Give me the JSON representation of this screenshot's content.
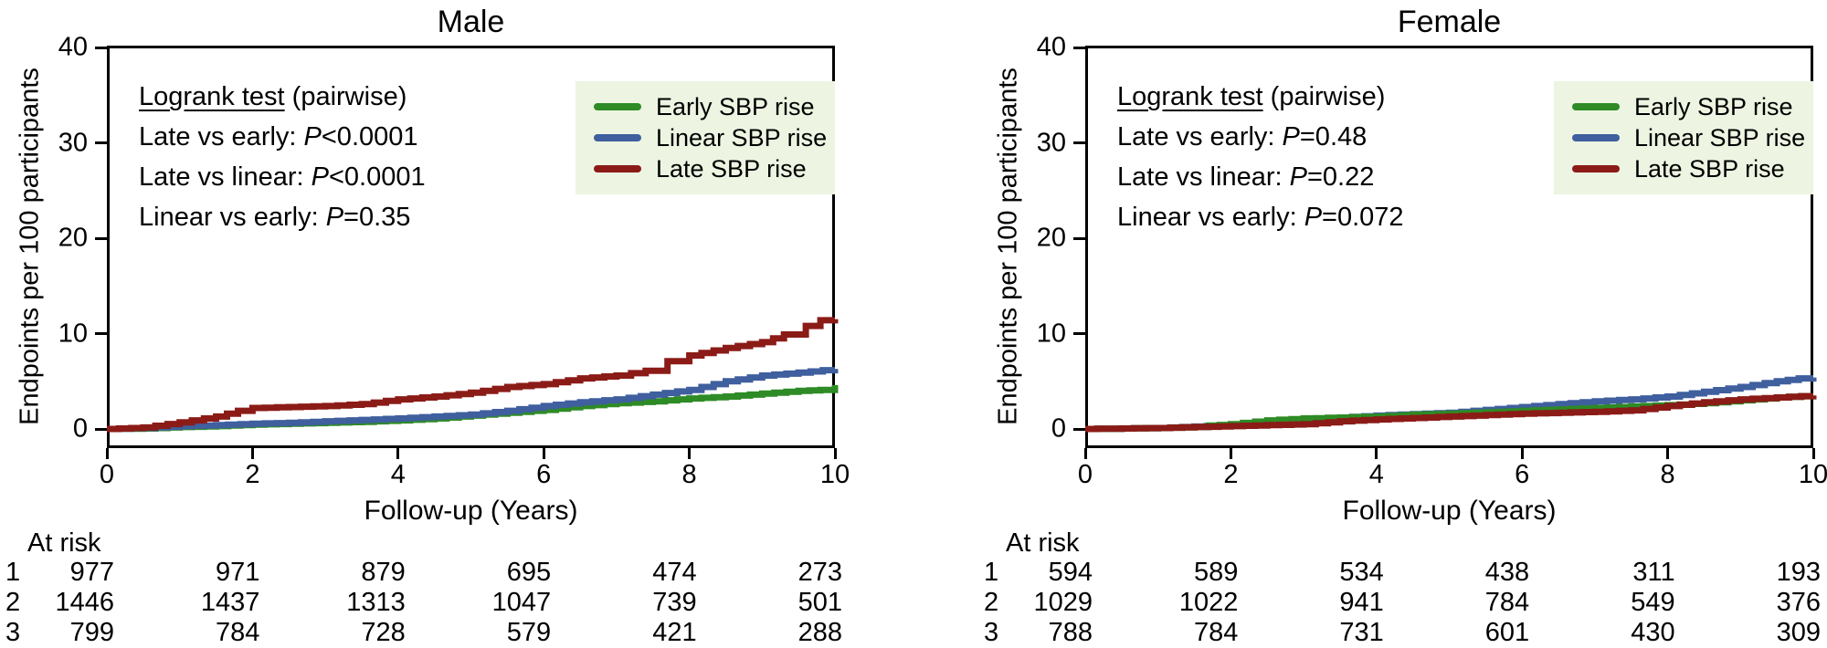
{
  "colors": {
    "early": "#2e8b25",
    "linear": "#3f5f9e",
    "late": "#8b1b17",
    "legend_bg": "#edf5e2",
    "axis": "#000000"
  },
  "legend": {
    "items": [
      {
        "key": "early",
        "label": "Early SBP rise"
      },
      {
        "key": "linear",
        "label": "Linear SBP rise"
      },
      {
        "key": "late",
        "label": "Late SBP rise"
      }
    ]
  },
  "panels": [
    {
      "title": "Male",
      "xlabel": "Follow-up (Years)",
      "ylabel": "Endpoints per 100 participants",
      "logrank": {
        "header_underlined": "Logrank test",
        "header_rest": " (pairwise)",
        "lines": [
          {
            "pre": "Late vs early: ",
            "p": "P",
            "val": "<0.0001"
          },
          {
            "pre": "Late vs linear: ",
            "p": "P",
            "val": "<0.0001"
          },
          {
            "pre": "Linear vs early: ",
            "p": "P",
            "val": "=0.35"
          }
        ]
      },
      "at_risk": {
        "header": "At risk",
        "rows": [
          {
            "label": "1",
            "values": [
              "977",
              "971",
              "879",
              "695",
              "474",
              "273"
            ]
          },
          {
            "label": "2",
            "values": [
              "1446",
              "1437",
              "1313",
              "1047",
              "739",
              "501"
            ]
          },
          {
            "label": "3",
            "values": [
              "799",
              "784",
              "728",
              "579",
              "421",
              "288"
            ]
          }
        ]
      }
    },
    {
      "title": "Female",
      "xlabel": "Follow-up (Years)",
      "ylabel": "Endpoints per 100 participants",
      "logrank": {
        "header_underlined": "Logrank test",
        "header_rest": " (pairwise)",
        "lines": [
          {
            "pre": "Late vs early: ",
            "p": "P",
            "val": "=0.48"
          },
          {
            "pre": "Late vs linear: ",
            "p": "P",
            "val": "=0.22"
          },
          {
            "pre": "Linear vs early: ",
            "p": "P",
            "val": "=0.072"
          }
        ]
      },
      "at_risk": {
        "header": "At risk",
        "rows": [
          {
            "label": "1",
            "values": [
              "594",
              "589",
              "534",
              "438",
              "311",
              "193"
            ]
          },
          {
            "label": "2",
            "values": [
              "1029",
              "1022",
              "941",
              "784",
              "549",
              "376"
            ]
          },
          {
            "label": "3",
            "values": [
              "788",
              "784",
              "731",
              "601",
              "430",
              "309"
            ]
          }
        ]
      }
    }
  ],
  "chart_data": [
    {
      "type": "line",
      "subtype": "kaplan-meier-step",
      "title": "Male",
      "xlabel": "Follow-up (Years)",
      "ylabel": "Endpoints per 100 participants",
      "xlim": [
        0,
        10
      ],
      "ylim": [
        0,
        40
      ],
      "xticks": [
        0,
        2,
        4,
        6,
        8,
        10
      ],
      "yticks": [
        0,
        10,
        20,
        30,
        40
      ],
      "grid": false,
      "legend_position": "upper right",
      "series": [
        {
          "key": "early",
          "name": "Early SBP rise",
          "points": [
            [
              0,
              0
            ],
            [
              0.5,
              0.05
            ],
            [
              1,
              0.2
            ],
            [
              1.5,
              0.3
            ],
            [
              2,
              0.45
            ],
            [
              2.5,
              0.55
            ],
            [
              3,
              0.65
            ],
            [
              3.5,
              0.75
            ],
            [
              4,
              0.9
            ],
            [
              4.5,
              1.1
            ],
            [
              5,
              1.4
            ],
            [
              5.5,
              1.7
            ],
            [
              6,
              2.0
            ],
            [
              6.5,
              2.4
            ],
            [
              7,
              2.7
            ],
            [
              7.5,
              2.9
            ],
            [
              8,
              3.2
            ],
            [
              8.5,
              3.4
            ],
            [
              9,
              3.7
            ],
            [
              9.5,
              4.0
            ],
            [
              9.8,
              4.1
            ],
            [
              10,
              4.6
            ]
          ]
        },
        {
          "key": "linear",
          "name": "Linear SBP rise",
          "points": [
            [
              0,
              0
            ],
            [
              0.5,
              0.1
            ],
            [
              1,
              0.3
            ],
            [
              1.5,
              0.4
            ],
            [
              2,
              0.55
            ],
            [
              2.5,
              0.65
            ],
            [
              3,
              0.8
            ],
            [
              3.5,
              0.95
            ],
            [
              4,
              1.1
            ],
            [
              4.5,
              1.3
            ],
            [
              5,
              1.5
            ],
            [
              5.5,
              1.9
            ],
            [
              6,
              2.4
            ],
            [
              6.5,
              2.8
            ],
            [
              7,
              3.1
            ],
            [
              7.5,
              3.6
            ],
            [
              8,
              4.1
            ],
            [
              8.5,
              5.0
            ],
            [
              9,
              5.6
            ],
            [
              9.5,
              5.9
            ],
            [
              10,
              6.3
            ]
          ]
        },
        {
          "key": "late",
          "name": "Late SBP rise",
          "points": [
            [
              0,
              0
            ],
            [
              0.5,
              0.15
            ],
            [
              1,
              0.7
            ],
            [
              1.5,
              1.3
            ],
            [
              1.8,
              1.9
            ],
            [
              2,
              2.2
            ],
            [
              2.5,
              2.3
            ],
            [
              3,
              2.4
            ],
            [
              3.5,
              2.6
            ],
            [
              4,
              3.1
            ],
            [
              4.5,
              3.4
            ],
            [
              5,
              3.8
            ],
            [
              5.5,
              4.4
            ],
            [
              6,
              4.7
            ],
            [
              6.5,
              5.3
            ],
            [
              7,
              5.6
            ],
            [
              7.4,
              6.1
            ],
            [
              7.7,
              7.1
            ],
            [
              8,
              7.7
            ],
            [
              8.5,
              8.5
            ],
            [
              9,
              9.1
            ],
            [
              9.3,
              9.9
            ],
            [
              9.6,
              10.8
            ],
            [
              9.8,
              11.4
            ],
            [
              10,
              11.5
            ]
          ]
        }
      ]
    },
    {
      "type": "line",
      "subtype": "kaplan-meier-step",
      "title": "Female",
      "xlabel": "Follow-up (Years)",
      "ylabel": "Endpoints per 100 participants",
      "xlim": [
        0,
        10
      ],
      "ylim": [
        0,
        40
      ],
      "xticks": [
        0,
        2,
        4,
        6,
        8,
        10
      ],
      "yticks": [
        0,
        10,
        20,
        30,
        40
      ],
      "grid": false,
      "legend_position": "upper right",
      "series": [
        {
          "key": "linear",
          "name": "Linear SBP rise",
          "points": [
            [
              0,
              0
            ],
            [
              0.5,
              0.05
            ],
            [
              1,
              0.1
            ],
            [
              1.5,
              0.25
            ],
            [
              2,
              0.4
            ],
            [
              2.5,
              0.7
            ],
            [
              3,
              1.0
            ],
            [
              3.5,
              1.2
            ],
            [
              4,
              1.4
            ],
            [
              4.5,
              1.55
            ],
            [
              5,
              1.7
            ],
            [
              5.5,
              2.0
            ],
            [
              6,
              2.3
            ],
            [
              6.5,
              2.6
            ],
            [
              7,
              2.9
            ],
            [
              7.5,
              3.1
            ],
            [
              8,
              3.4
            ],
            [
              8.5,
              3.9
            ],
            [
              9,
              4.4
            ],
            [
              9.5,
              5.0
            ],
            [
              9.8,
              5.3
            ],
            [
              10,
              5.4
            ]
          ]
        },
        {
          "key": "early",
          "name": "Early SBP rise",
          "points": [
            [
              0,
              0
            ],
            [
              0.5,
              0.05
            ],
            [
              1,
              0.1
            ],
            [
              1.5,
              0.2
            ],
            [
              1.7,
              0.35
            ],
            [
              2,
              0.5
            ],
            [
              2.5,
              0.9
            ],
            [
              3,
              1.1
            ],
            [
              3.5,
              1.2
            ],
            [
              4,
              1.3
            ],
            [
              4.5,
              1.5
            ],
            [
              5,
              1.6
            ],
            [
              5.5,
              1.75
            ],
            [
              6,
              1.9
            ],
            [
              6.5,
              2.05
            ],
            [
              7,
              2.2
            ],
            [
              7.5,
              2.35
            ],
            [
              8,
              2.5
            ],
            [
              8.5,
              2.7
            ],
            [
              9,
              3.0
            ],
            [
              9.5,
              3.3
            ],
            [
              10,
              3.5
            ]
          ]
        },
        {
          "key": "late",
          "name": "Late SBP rise",
          "points": [
            [
              0,
              0
            ],
            [
              0.5,
              0.05
            ],
            [
              1,
              0.1
            ],
            [
              1.5,
              0.2
            ],
            [
              2,
              0.3
            ],
            [
              2.5,
              0.4
            ],
            [
              3,
              0.5
            ],
            [
              3.5,
              0.8
            ],
            [
              4,
              1.0
            ],
            [
              4.5,
              1.15
            ],
            [
              5,
              1.3
            ],
            [
              5.5,
              1.45
            ],
            [
              6,
              1.6
            ],
            [
              6.5,
              1.7
            ],
            [
              7,
              1.8
            ],
            [
              7.5,
              1.95
            ],
            [
              8,
              2.4
            ],
            [
              8.5,
              2.8
            ],
            [
              9,
              3.1
            ],
            [
              9.5,
              3.3
            ],
            [
              10,
              3.5
            ]
          ]
        }
      ]
    }
  ]
}
